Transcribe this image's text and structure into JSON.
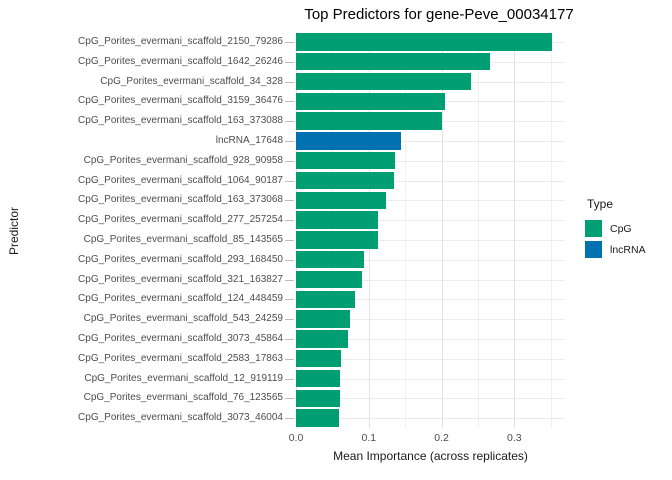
{
  "title": "Top Predictors for gene-Peve_00034177",
  "legend": {
    "title": "Type",
    "entries": [
      {
        "label": "CpG",
        "color": "#009E73"
      },
      {
        "label": "lncRNA",
        "color": "#0072B2"
      }
    ]
  },
  "chart_data": {
    "type": "bar",
    "orientation": "horizontal",
    "title": "Top Predictors for gene-Peve_00034177",
    "xlabel": "Mean Importance (across replicates)",
    "ylabel": "Predictor",
    "xlim": [
      0,
      0.3696
    ],
    "x_major_ticks": [
      0.0,
      0.1,
      0.2,
      0.3
    ],
    "x_tick_labels": [
      "0.0",
      "0.1",
      "0.2",
      "0.3"
    ],
    "x_minor_gridlines": [
      0.05,
      0.15,
      0.25,
      0.35
    ],
    "grid": true,
    "legend_position": "right",
    "legend_title": "Type",
    "color_map": {
      "CpG": "#009E73",
      "lncRNA": "#0072B2"
    },
    "categories": [
      "CpG_Porites_evermani_scaffold_2150_79286",
      "CpG_Porites_evermani_scaffold_1642_26246",
      "CpG_Porites_evermani_scaffold_34_328",
      "CpG_Porites_evermani_scaffold_3159_36476",
      "CpG_Porites_evermani_scaffold_163_373088",
      "lncRNA_17648",
      "CpG_Porites_evermani_scaffold_928_90958",
      "CpG_Porites_evermani_scaffold_1064_90187",
      "CpG_Porites_evermani_scaffold_163_373068",
      "CpG_Porites_evermani_scaffold_277_257254",
      "CpG_Porites_evermani_scaffold_85_143565",
      "CpG_Porites_evermani_scaffold_293_168450",
      "CpG_Porites_evermani_scaffold_321_163827",
      "CpG_Porites_evermani_scaffold_124_448459",
      "CpG_Porites_evermani_scaffold_543_24259",
      "CpG_Porites_evermani_scaffold_3073_45864",
      "CpG_Porites_evermani_scaffold_2583_17863",
      "CpG_Porites_evermani_scaffold_12_919119",
      "CpG_Porites_evermani_scaffold_76_123565",
      "CpG_Porites_evermani_scaffold_3073_46004"
    ],
    "values": [
      0.352,
      0.267,
      0.241,
      0.204,
      0.201,
      0.144,
      0.136,
      0.134,
      0.124,
      0.113,
      0.112,
      0.094,
      0.09,
      0.081,
      0.074,
      0.072,
      0.062,
      0.061,
      0.061,
      0.059
    ],
    "types": [
      "CpG",
      "CpG",
      "CpG",
      "CpG",
      "CpG",
      "lncRNA",
      "CpG",
      "CpG",
      "CpG",
      "CpG",
      "CpG",
      "CpG",
      "CpG",
      "CpG",
      "CpG",
      "CpG",
      "CpG",
      "CpG",
      "CpG",
      "CpG"
    ]
  }
}
